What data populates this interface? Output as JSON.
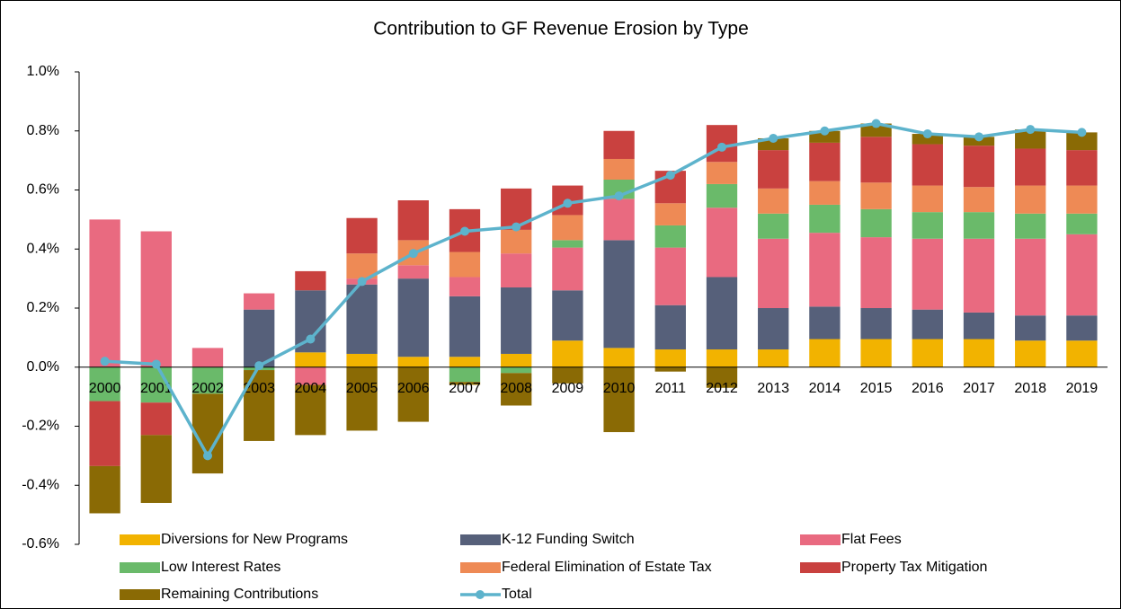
{
  "chart_data": {
    "type": "stacked_bar_line",
    "title": "Contribution to GF Revenue  Erosion by Type",
    "categories": [
      "2000",
      "2001",
      "2002",
      "2003",
      "2004",
      "2005",
      "2006",
      "2007",
      "2008",
      "2009",
      "2010",
      "2011",
      "2012",
      "2013",
      "2014",
      "2015",
      "2016",
      "2017",
      "2018",
      "2019"
    ],
    "series": [
      {
        "name": "Diversions for New Programs",
        "color": "#f2b300",
        "values": [
          0,
          0,
          0,
          0,
          0.05,
          0.045,
          0.035,
          0.035,
          0.045,
          0.09,
          0.065,
          0.06,
          0.06,
          0.06,
          0.095,
          0.095,
          0.095,
          0.095,
          0.09,
          0.09
        ]
      },
      {
        "name": "K-12 Funding Switch",
        "color": "#56607a",
        "values": [
          0,
          0,
          0,
          0.195,
          0.21,
          0.235,
          0.265,
          0.205,
          0.225,
          0.17,
          0.365,
          0.15,
          0.245,
          0.14,
          0.11,
          0.105,
          0.1,
          0.09,
          0.085,
          0.085
        ]
      },
      {
        "name": "Flat Fees",
        "color": "#e96a80",
        "values": [
          0.5,
          0.46,
          0.065,
          0.055,
          -0.06,
          0.02,
          0.045,
          0.065,
          0.115,
          0.145,
          0.14,
          0.195,
          0.235,
          0.235,
          0.25,
          0.24,
          0.24,
          0.25,
          0.26,
          0.275
        ]
      },
      {
        "name": "Low Interest Rates",
        "color": "#6aba6a",
        "values": [
          -0.115,
          -0.12,
          -0.09,
          -0.01,
          0,
          0,
          0,
          -0.05,
          -0.02,
          0.025,
          0.065,
          0.075,
          0.08,
          0.085,
          0.095,
          0.095,
          0.09,
          0.09,
          0.085,
          0.07
        ]
      },
      {
        "name": "Federal Elimination of Estate Tax",
        "color": "#ee8a55",
        "values": [
          0,
          0,
          0,
          0,
          0,
          0.085,
          0.085,
          0.085,
          0.08,
          0.085,
          0.07,
          0.075,
          0.075,
          0.085,
          0.08,
          0.09,
          0.09,
          0.085,
          0.095,
          0.095
        ]
      },
      {
        "name": "Property Tax Mitigation",
        "color": "#c9413f",
        "values": [
          -0.22,
          -0.11,
          0,
          0,
          0.065,
          0.12,
          0.135,
          0.145,
          0.14,
          0.1,
          0.095,
          0.11,
          0.125,
          0.13,
          0.13,
          0.155,
          0.14,
          0.14,
          0.125,
          0.12
        ]
      },
      {
        "name": "Remaining Contributions",
        "color": "#8a6a05",
        "values": [
          -0.16,
          -0.23,
          -0.27,
          -0.24,
          -0.17,
          -0.215,
          -0.185,
          -0.01,
          -0.11,
          -0.055,
          -0.22,
          -0.015,
          -0.07,
          0.04,
          0.04,
          0.045,
          0.035,
          0.03,
          0.065,
          0.06
        ]
      },
      {
        "name": "Total",
        "color": "#5db3cc",
        "line": true,
        "values": [
          0.02,
          0.01,
          -0.3,
          0.005,
          0.095,
          0.29,
          0.385,
          0.46,
          0.475,
          0.555,
          0.58,
          0.65,
          0.745,
          0.775,
          0.8,
          0.825,
          0.79,
          0.78,
          0.805,
          0.795
        ]
      }
    ],
    "ylim": [
      -0.6,
      1.0
    ],
    "yticks": [
      {
        "value": -0.6,
        "label": "-0.6%"
      },
      {
        "value": -0.4,
        "label": "-0.4%"
      },
      {
        "value": -0.2,
        "label": "-0.2%"
      },
      {
        "value": 0,
        "label": "0.0%"
      },
      {
        "value": 0.2,
        "label": "0.2%"
      },
      {
        "value": 0.4,
        "label": "0.4%"
      },
      {
        "value": 0.6,
        "label": "0.6%"
      },
      {
        "value": 0.8,
        "label": "0.8%"
      },
      {
        "value": 1.0,
        "label": "1.0%"
      }
    ],
    "legend": "bottom"
  }
}
